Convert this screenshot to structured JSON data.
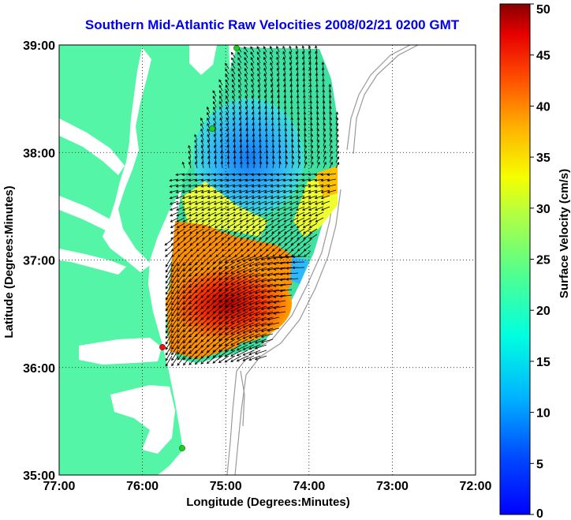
{
  "title": "Southern Mid-Atlantic Raw Velocities 2008/02/21 0200 GMT",
  "axes": {
    "xlabel": "Longitude (Degrees:Minutes)",
    "ylabel": "Latitude (Degrees:Minutes)",
    "x_ticks": [
      "77:00",
      "76:00",
      "75:00",
      "74:00",
      "73:00",
      "72:00"
    ],
    "y_ticks": [
      "39:00",
      "38:00",
      "37:00",
      "36:00",
      "35:00"
    ],
    "lon_range": [
      -77,
      -72
    ],
    "lat_range": [
      35,
      39
    ],
    "grid": "dotted"
  },
  "colorbar": {
    "label": "Surface Velocity (cm/s)",
    "ticks": [
      "0",
      "5",
      "10",
      "15",
      "20",
      "25",
      "30",
      "35",
      "40",
      "45",
      "50"
    ],
    "range": [
      0,
      50
    ],
    "colormap": "jet"
  },
  "colors": {
    "land": "#55f5a8",
    "title": "#0000ee",
    "bathymetry": "#999999",
    "station_green": "#22cc22",
    "station_red": "#ee1111"
  }
}
